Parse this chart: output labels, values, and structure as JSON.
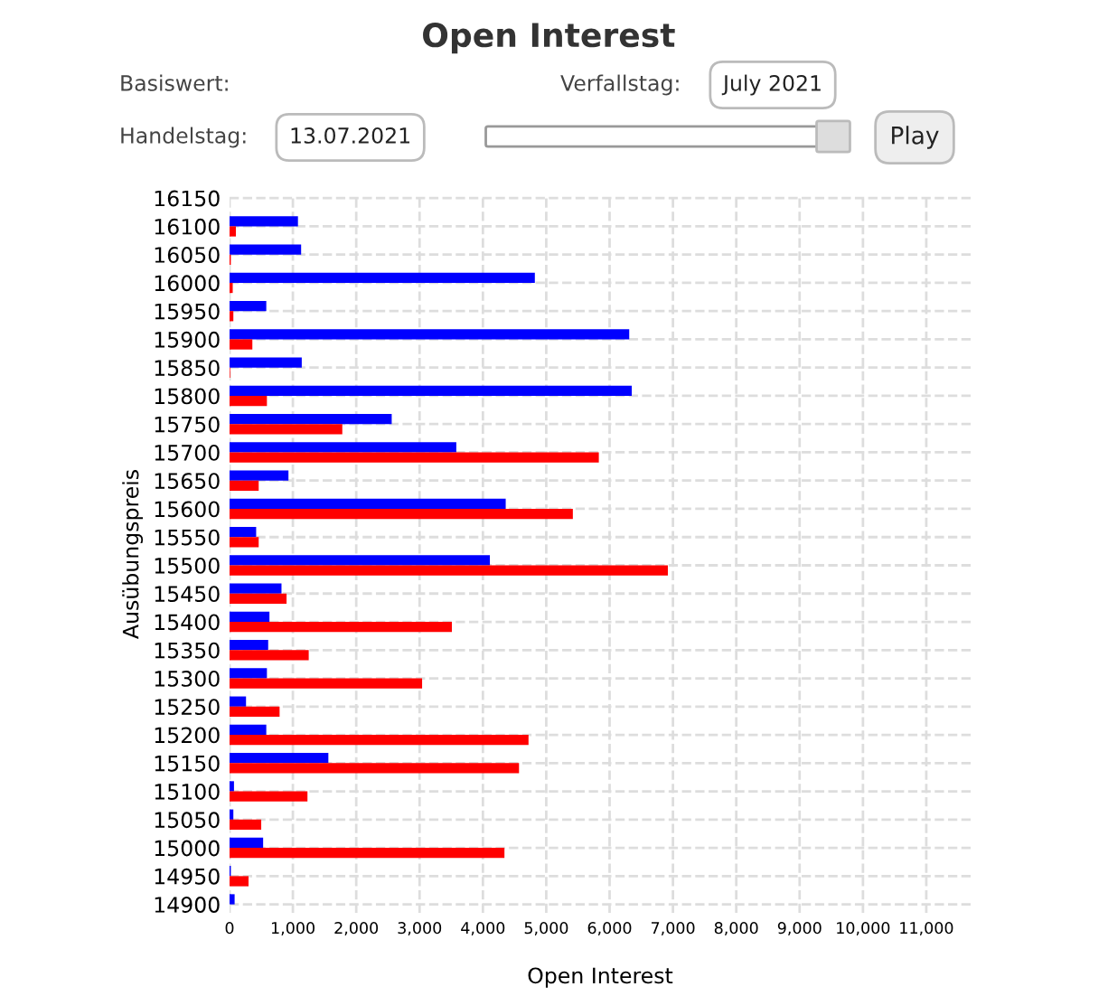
{
  "chart_data": {
    "type": "bar",
    "orientation": "horizontal",
    "title": "Open Interest",
    "xlabel": "Open Interest",
    "ylabel": "Ausübungspreis",
    "categories": [
      "16150",
      "16100",
      "16050",
      "16000",
      "15950",
      "15900",
      "15850",
      "15800",
      "15750",
      "15700",
      "15650",
      "15600",
      "15550",
      "15500",
      "15450",
      "15400",
      "15350",
      "15300",
      "15250",
      "15200",
      "15150",
      "15100",
      "15050",
      "15000",
      "14950",
      "14900"
    ],
    "series": [
      {
        "color": "#0000ff",
        "values": [
          0,
          1080,
          1130,
          4820,
          580,
          6310,
          1140,
          6350,
          2560,
          3580,
          930,
          4360,
          420,
          4110,
          820,
          630,
          610,
          590,
          260,
          580,
          1560,
          70,
          60,
          530,
          20,
          80
        ]
      },
      {
        "color": "#ff0000",
        "values": [
          0,
          100,
          20,
          50,
          60,
          360,
          10,
          590,
          1780,
          5830,
          460,
          5420,
          460,
          6920,
          900,
          3510,
          1250,
          3040,
          790,
          4720,
          4570,
          1230,
          500,
          4340,
          300,
          0
        ]
      }
    ],
    "xlim": [
      0,
      11700
    ],
    "xticks": [
      0,
      {
        "value": 1000,
        "label": "1,000"
      },
      {
        "value": 2000,
        "label": "2,000"
      },
      {
        "value": 3000,
        "label": "3,000"
      },
      {
        "value": 4000,
        "label": "4,000"
      },
      {
        "value": 5000,
        "label": "5,000"
      },
      {
        "value": 6000,
        "label": "6,000"
      },
      {
        "value": 7000,
        "label": "7,000"
      },
      {
        "value": 8000,
        "label": "8,000"
      },
      {
        "value": 9000,
        "label": "9,000"
      },
      {
        "value": 10000,
        "label": "10,000"
      },
      {
        "value": 11000,
        "label": "11,000"
      }
    ],
    "grid": true,
    "line_style": "dashed",
    "annotations": [
      "Basiswert:",
      "Verfallstag:",
      "July 2021",
      "Handelstag:",
      "13.07.2021",
      "Play"
    ]
  }
}
